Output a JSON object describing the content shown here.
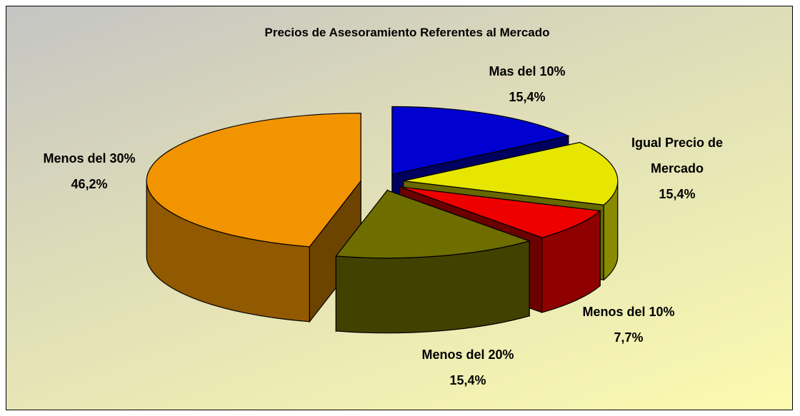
{
  "chart_data": {
    "type": "pie",
    "title": "Precios de Asesoramiento Referentes al Mercado",
    "categories": [
      "Mas del 10%",
      "Igual Precio de Mercado",
      "Menos del 10%",
      "Menos del 20%",
      "Menos del 30%"
    ],
    "values": [
      15.4,
      15.4,
      7.7,
      15.4,
      46.2
    ],
    "value_labels": [
      "15,4%",
      "15,4%",
      "7,7%",
      "15,4%",
      "46,2%"
    ],
    "colors": [
      "#0000d0",
      "#e6e600",
      "#ee0000",
      "#6e6e00",
      "#f29400"
    ]
  }
}
